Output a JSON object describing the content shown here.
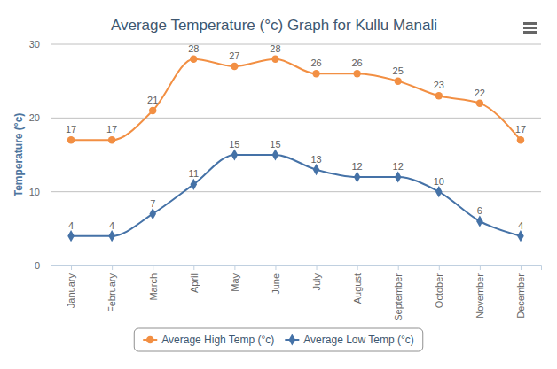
{
  "chart_data": {
    "type": "line",
    "title": "Average Temperature (°c) Graph for Kullu Manali",
    "y_label": "Temperature (°c)",
    "categories": [
      "January",
      "February",
      "March",
      "April",
      "May",
      "June",
      "July",
      "August",
      "September",
      "October",
      "November",
      "December"
    ],
    "series": [
      {
        "name": "Average High Temp (°c)",
        "color": "#f28f43",
        "marker": "circle",
        "line_style": "smooth",
        "values": [
          17,
          17,
          21,
          28,
          27,
          28,
          26,
          26,
          25,
          23,
          22,
          17
        ]
      },
      {
        "name": "Average Low Temp (°c)",
        "color": "#4572a7",
        "marker": "diamond",
        "line_style": "smooth",
        "values": [
          4,
          4,
          7,
          11,
          15,
          15,
          13,
          12,
          12,
          10,
          6,
          4
        ]
      }
    ],
    "ylim": [
      0,
      30
    ],
    "yticks": [
      0,
      10,
      20,
      30
    ],
    "grid": true,
    "data_labels": true,
    "legend": "bottom"
  }
}
